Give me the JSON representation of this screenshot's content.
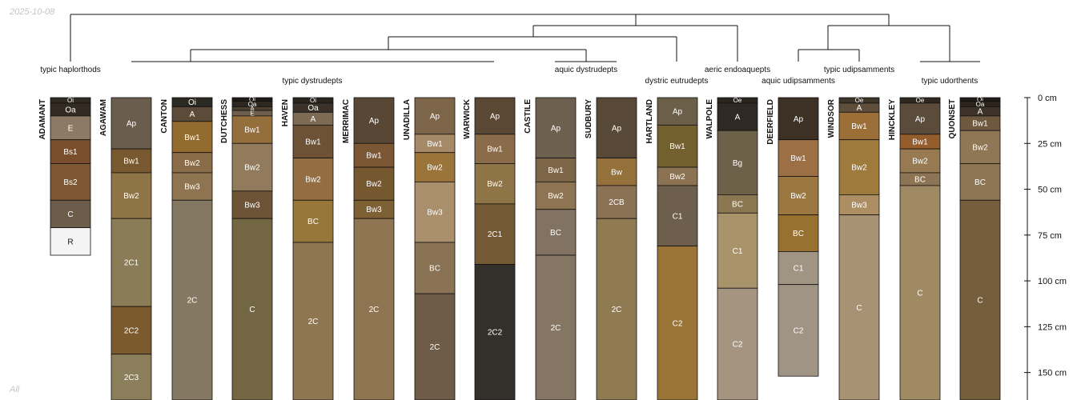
{
  "date_stamp": "2025-10-08",
  "panel_label": "All",
  "depth_axis": {
    "unit": "cm",
    "max_depth": 165,
    "ticks": [
      "0 cm",
      "25 cm",
      "50 cm",
      "75 cm",
      "100 cm",
      "125 cm",
      "150 cm"
    ],
    "tick_values": [
      0,
      25,
      50,
      75,
      100,
      125,
      150
    ]
  },
  "taxa_labels": [
    {
      "text": "typic haplorthods"
    },
    {
      "text": "typic dystrudepts"
    },
    {
      "text": "aquic dystrudepts"
    },
    {
      "text": "dystric eutrudepts"
    },
    {
      "text": "aeric endoaquepts"
    },
    {
      "text": "aquic udipsamments"
    },
    {
      "text": "typic udipsamments"
    },
    {
      "text": "typic udorthents"
    }
  ],
  "profiles": [
    {
      "name": "ADAMANT",
      "horizons": [
        {
          "name": "Oi",
          "top": 0,
          "bottom": 3,
          "color": "#2f2a24"
        },
        {
          "name": "Oa",
          "top": 3,
          "bottom": 10,
          "color": "#332b23"
        },
        {
          "name": "E",
          "top": 10,
          "bottom": 23,
          "color": "#8d7965"
        },
        {
          "name": "Bs1",
          "top": 23,
          "bottom": 36,
          "color": "#7a4d2d"
        },
        {
          "name": "Bs2",
          "top": 36,
          "bottom": 56,
          "color": "#7d5833"
        },
        {
          "name": "C",
          "top": 56,
          "bottom": 71,
          "color": "#6b5d4a"
        },
        {
          "name": "R",
          "top": 71,
          "bottom": 86,
          "color": "#f4f4f4"
        }
      ]
    },
    {
      "name": "AGAWAM",
      "horizons": [
        {
          "name": "Ap",
          "top": 0,
          "bottom": 28,
          "color": "#6b5d4d"
        },
        {
          "name": "Bw1",
          "top": 28,
          "bottom": 41,
          "color": "#78592f"
        },
        {
          "name": "Bw2",
          "top": 41,
          "bottom": 66,
          "color": "#8f7448"
        },
        {
          "name": "2C1",
          "top": 66,
          "bottom": 114,
          "color": "#8a7c57"
        },
        {
          "name": "2C2",
          "top": 114,
          "bottom": 140,
          "color": "#7b5a2e"
        },
        {
          "name": "2C3",
          "top": 140,
          "bottom": 165,
          "color": "#8b7e5b"
        }
      ]
    },
    {
      "name": "CANTON",
      "horizons": [
        {
          "name": "Oi",
          "top": 0,
          "bottom": 5,
          "color": "#2c2822"
        },
        {
          "name": "A",
          "top": 5,
          "bottom": 13,
          "color": "#5c4b38"
        },
        {
          "name": "Bw1",
          "top": 13,
          "bottom": 30,
          "color": "#946b2e"
        },
        {
          "name": "Bw2",
          "top": 30,
          "bottom": 41,
          "color": "#8a6c48"
        },
        {
          "name": "Bw3",
          "top": 41,
          "bottom": 56,
          "color": "#8e7450"
        },
        {
          "name": "2C",
          "top": 56,
          "bottom": 165,
          "color": "#857862"
        }
      ]
    },
    {
      "name": "DUTCHESS",
      "horizons": [
        {
          "name": "Oi",
          "top": 0,
          "bottom": 2,
          "color": "#1f1c18"
        },
        {
          "name": "Oa",
          "top": 2,
          "bottom": 5,
          "color": "#2e2720"
        },
        {
          "name": "A",
          "top": 5,
          "bottom": 7,
          "color": "#4f4131"
        },
        {
          "name": "E",
          "top": 7,
          "bottom": 10,
          "color": "#6e5e4c"
        },
        {
          "name": "Bw1",
          "top": 10,
          "bottom": 25,
          "color": "#956f3b"
        },
        {
          "name": "Bw2",
          "top": 25,
          "bottom": 51,
          "color": "#927a5c"
        },
        {
          "name": "Bw3",
          "top": 51,
          "bottom": 66,
          "color": "#6e5436"
        },
        {
          "name": "C",
          "top": 66,
          "bottom": 165,
          "color": "#736643"
        }
      ]
    },
    {
      "name": "HAVEN",
      "horizons": [
        {
          "name": "Oi",
          "top": 0,
          "bottom": 3,
          "color": "#2a251f"
        },
        {
          "name": "Oa",
          "top": 3,
          "bottom": 8,
          "color": "#3a3128"
        },
        {
          "name": "A",
          "top": 8,
          "bottom": 15,
          "color": "#7d6b55"
        },
        {
          "name": "Bw1",
          "top": 15,
          "bottom": 33,
          "color": "#6e5235"
        },
        {
          "name": "Bw2",
          "top": 33,
          "bottom": 56,
          "color": "#946d42"
        },
        {
          "name": "BC",
          "top": 56,
          "bottom": 79,
          "color": "#98773a"
        },
        {
          "name": "2C",
          "top": 79,
          "bottom": 165,
          "color": "#8e7652"
        }
      ]
    },
    {
      "name": "MERRIMAC",
      "horizons": [
        {
          "name": "Ap",
          "top": 0,
          "bottom": 25,
          "color": "#584734"
        },
        {
          "name": "Bw1",
          "top": 25,
          "bottom": 38,
          "color": "#7b5733"
        },
        {
          "name": "Bw2",
          "top": 38,
          "bottom": 56,
          "color": "#75582f"
        },
        {
          "name": "Bw3",
          "top": 56,
          "bottom": 66,
          "color": "#7d6033"
        },
        {
          "name": "2C",
          "top": 66,
          "bottom": 165,
          "color": "#8f7451"
        }
      ]
    },
    {
      "name": "UNADILLA",
      "horizons": [
        {
          "name": "Ap",
          "top": 0,
          "bottom": 20,
          "color": "#7d6549"
        },
        {
          "name": "Bw1",
          "top": 20,
          "bottom": 30,
          "color": "#a68a68"
        },
        {
          "name": "Bw2",
          "top": 30,
          "bottom": 46,
          "color": "#9b7439"
        },
        {
          "name": "Bw3",
          "top": 46,
          "bottom": 79,
          "color": "#a98f6c"
        },
        {
          "name": "BC",
          "top": 79,
          "bottom": 107,
          "color": "#8a7254"
        },
        {
          "name": "2C",
          "top": 107,
          "bottom": 165,
          "color": "#6e5b48"
        }
      ]
    },
    {
      "name": "WARWICK",
      "horizons": [
        {
          "name": "Ap",
          "top": 0,
          "bottom": 20,
          "color": "#5a4734"
        },
        {
          "name": "Bw1",
          "top": 20,
          "bottom": 36,
          "color": "#8a6c4a"
        },
        {
          "name": "Bw2",
          "top": 36,
          "bottom": 58,
          "color": "#8f7448"
        },
        {
          "name": "2C1",
          "top": 58,
          "bottom": 91,
          "color": "#735a35"
        },
        {
          "name": "2C2",
          "top": 91,
          "bottom": 165,
          "color": "#33302b"
        }
      ]
    },
    {
      "name": "CASTILE",
      "horizons": [
        {
          "name": "Ap",
          "top": 0,
          "bottom": 33,
          "color": "#6e604f"
        },
        {
          "name": "Bw1",
          "top": 33,
          "bottom": 46,
          "color": "#7d6548"
        },
        {
          "name": "Bw2",
          "top": 46,
          "bottom": 61,
          "color": "#8f7453"
        },
        {
          "name": "BC",
          "top": 61,
          "bottom": 86,
          "color": "#827261"
        },
        {
          "name": "2C",
          "top": 86,
          "bottom": 165,
          "color": "#857663"
        }
      ]
    },
    {
      "name": "SUDBURY",
      "horizons": [
        {
          "name": "Ap",
          "top": 0,
          "bottom": 33,
          "color": "#574838"
        },
        {
          "name": "Bw",
          "top": 33,
          "bottom": 48,
          "color": "#94703a"
        },
        {
          "name": "2CB",
          "top": 48,
          "bottom": 66,
          "color": "#8c7254"
        },
        {
          "name": "2C",
          "top": 66,
          "bottom": 165,
          "color": "#8f7a52"
        }
      ]
    },
    {
      "name": "HARTLAND",
      "horizons": [
        {
          "name": "Ap",
          "top": 0,
          "bottom": 15,
          "color": "#6b5f4a"
        },
        {
          "name": "Bw1",
          "top": 15,
          "bottom": 38,
          "color": "#72612f"
        },
        {
          "name": "Bw2",
          "top": 38,
          "bottom": 48,
          "color": "#8a7252"
        },
        {
          "name": "C1",
          "top": 48,
          "bottom": 81,
          "color": "#6e5f4c"
        },
        {
          "name": "C2",
          "top": 81,
          "bottom": 165,
          "color": "#9a7437"
        }
      ]
    },
    {
      "name": "WALPOLE",
      "horizons": [
        {
          "name": "Oe",
          "top": 0,
          "bottom": 3,
          "color": "#2b2520"
        },
        {
          "name": "A",
          "top": 3,
          "bottom": 18,
          "color": "#2f2923"
        },
        {
          "name": "Bg",
          "top": 18,
          "bottom": 53,
          "color": "#6e6149"
        },
        {
          "name": "BC",
          "top": 53,
          "bottom": 63,
          "color": "#8b7752"
        },
        {
          "name": "C1",
          "top": 63,
          "bottom": 104,
          "color": "#a9936a"
        },
        {
          "name": "C2",
          "top": 104,
          "bottom": 165,
          "color": "#a59580"
        }
      ]
    },
    {
      "name": "DEERFIELD",
      "horizons": [
        {
          "name": "Ap",
          "top": 0,
          "bottom": 23,
          "color": "#3d3126"
        },
        {
          "name": "Bw1",
          "top": 23,
          "bottom": 43,
          "color": "#9c6f45"
        },
        {
          "name": "Bw2",
          "top": 43,
          "bottom": 64,
          "color": "#9c7841"
        },
        {
          "name": "BC",
          "top": 64,
          "bottom": 84,
          "color": "#98702f"
        },
        {
          "name": "C1",
          "top": 84,
          "bottom": 102,
          "color": "#a09483"
        },
        {
          "name": "C2",
          "top": 102,
          "bottom": 152,
          "color": "#a09484"
        }
      ]
    },
    {
      "name": "WINDSOR",
      "horizons": [
        {
          "name": "Oe",
          "top": 0,
          "bottom": 3,
          "color": "#3d342a"
        },
        {
          "name": "A",
          "top": 3,
          "bottom": 8,
          "color": "#5f4e3c"
        },
        {
          "name": "Bw1",
          "top": 8,
          "bottom": 23,
          "color": "#9c6f38"
        },
        {
          "name": "Bw2",
          "top": 23,
          "bottom": 53,
          "color": "#9e7a3d"
        },
        {
          "name": "Bw3",
          "top": 53,
          "bottom": 64,
          "color": "#ad8e62"
        },
        {
          "name": "C",
          "top": 64,
          "bottom": 165,
          "color": "#a79274"
        }
      ]
    },
    {
      "name": "HINCKLEY",
      "horizons": [
        {
          "name": "Oe",
          "top": 0,
          "bottom": 3,
          "color": "#2e2820"
        },
        {
          "name": "Ap",
          "top": 3,
          "bottom": 20,
          "color": "#5a4b3b"
        },
        {
          "name": "Bw1",
          "top": 20,
          "bottom": 28,
          "color": "#945d2b"
        },
        {
          "name": "Bw2",
          "top": 28,
          "bottom": 41,
          "color": "#987a52"
        },
        {
          "name": "BC",
          "top": 41,
          "bottom": 48,
          "color": "#8d7454"
        },
        {
          "name": "C",
          "top": 48,
          "bottom": 165,
          "color": "#a08a64"
        }
      ]
    },
    {
      "name": "QUONSET",
      "horizons": [
        {
          "name": "Oi",
          "top": 0,
          "bottom": 2,
          "color": "#1f1b17"
        },
        {
          "name": "Oa",
          "top": 2,
          "bottom": 5,
          "color": "#2b241d"
        },
        {
          "name": "A",
          "top": 5,
          "bottom": 10,
          "color": "#3d3328"
        },
        {
          "name": "Bw1",
          "top": 10,
          "bottom": 18,
          "color": "#6e5840"
        },
        {
          "name": "Bw2",
          "top": 18,
          "bottom": 36,
          "color": "#8f7655"
        },
        {
          "name": "BC",
          "top": 36,
          "bottom": 56,
          "color": "#8d7553"
        },
        {
          "name": "C",
          "top": 56,
          "bottom": 165,
          "color": "#745e3b"
        }
      ]
    }
  ]
}
